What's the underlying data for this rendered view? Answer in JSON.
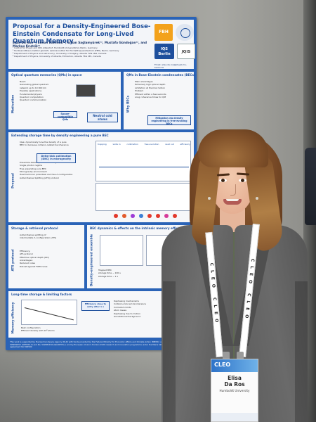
{
  "poster": {
    "title": "Proposal for a Density-Engineered Bose-Einstein Condensate for Long-Lived Quantum Memory",
    "authors": "Elisa Da Ros¹², Simon Kanthak¹², Erhan Sağlamyürek³⁴, Mustafa Gündoğan¹², and Markus Krutzik¹²",
    "affiliations": [
      "¹ Institut für Physik and IRIS Adlershof, Humboldt-Universität zu Berlin, Germany",
      "² Ferdinand-Braun-Institut gGmbH, Leibniz-Institut für Höchstfrequenztechnik (FBH), Berlin, Germany",
      "³ Department of Physics and Astronomy, University of Calgary, Alberta T2N 1N4, Canada",
      "⁴ Department of Physics, University of Alberta, Edmonton, Alberta T6G 2E1, Canada"
    ],
    "email": "Email: elisa.da.ros@physik.hu-berlin.de",
    "logos": {
      "fbh": "FBH",
      "iqs": "IQS Berlin",
      "jqis": "JQIS"
    },
    "panels": {
      "optical_qm": {
        "title": "Optical quantum memories (QMs) in space",
        "side": "Motivation",
        "lines": [
          "Need:",
          "Generating global quantum",
          "network up to 10 000 km",
          "Possible applications",
          "Fundamental physics",
          "Quantum computation",
          "Quantum communication"
        ],
        "boxes": [
          "Neutral cold atoms",
          "Space-compatible QMs"
        ]
      },
      "bec_qm": {
        "title": "QMs in Bose-Einstein condensates (BECs)",
        "side": "Why BECs",
        "lines": [
          "Main advantages",
          "Extremely high optical depth",
          "Limitation at thermal motion",
          "Problem",
          "Efficient within a few seconds",
          "Long coherence times for QM"
        ],
        "boxes": [
          "Mitigation via density engineering in free-evolving BECs"
        ]
      },
      "storage_time": {
        "title": "Extending storage time by density engineering a pure BEC",
        "side": "Proposal",
        "lines": [
          "Idea: dynamically tune the density of a pure",
          "BEC to decrease collision-related decoherence",
          "Ensemble-based quantum memory",
          "Single photon regime",
          "Free expanding pure BEC",
          "Microgravity environment",
          "Heat harmonic potentials and free Λ-configuration",
          "Autler-Townes Splitting (ATS) protocol"
        ],
        "boxes": [
          "Delta-kick collimation (DKC) in microgravity"
        ],
        "steps": [
          "trapping",
          "write in",
          "collimation",
          "free evolution",
          "read out",
          "efficiency"
        ]
      },
      "protocol": {
        "title": "Storage & retrieval protocol",
        "side": "ATS protocol",
        "lines": [
          "Autler-Townes splitting of",
          "intermediate Λ-configuration (ATS)",
          "Efficiency:",
          "ATS protocol",
          "Effective optical depth (OD)",
          "Advantages:",
          "Reduced noise",
          "Robust against FWM noise"
        ]
      },
      "dynamics": {
        "title": "BEC dynamics & effects on the intrinsic memory efficiency",
        "side": "Density-engineered ensemble",
        "lines": [
          "Trapped BEC",
          "storage time ~ 100 s",
          "storage time ~ 1 s"
        ]
      },
      "long_time": {
        "title": "Long-time storage & limiting factors",
        "side": "Memory efficiency",
        "lines": [
          "Dephasing mechanisms",
          "Collision-induced decoherence",
          "Cold-atom limits",
          "Atom losses",
          "Dephasing due to motion",
          "Gravitational background",
          "Best configuration",
          "Efficient density with 10⁸ atoms"
        ],
        "boxes": [
          "Efficiency close to unity after 1 s"
        ]
      }
    },
    "footer": "This work is supported by the German Space Agency (DLR) with funds provided by the Federal Ministry for Economic Affairs and Climate Action (BMWK) under grant number No. 50WM2052 (OPTIMO-II) and No. 50WM2156 (QUANTUS+) and by European Union's Horizon 2020 research and innovation programme under the Marie Skłodowska-Curie grant agreement No 894590"
  },
  "badge": {
    "event": "CLEO",
    "first_name": "Elisa",
    "last_name": "Da Ros",
    "organization": "Humboldt University"
  },
  "lanyard": {
    "text": "CLEO CLEO"
  },
  "colors": {
    "poster_blue": "#2a63b7",
    "title_blue": "#1e4f9c",
    "jacket_grey": "#666666",
    "hair_brown": "#8a5a30",
    "badge_blue": "#2e73c8"
  }
}
